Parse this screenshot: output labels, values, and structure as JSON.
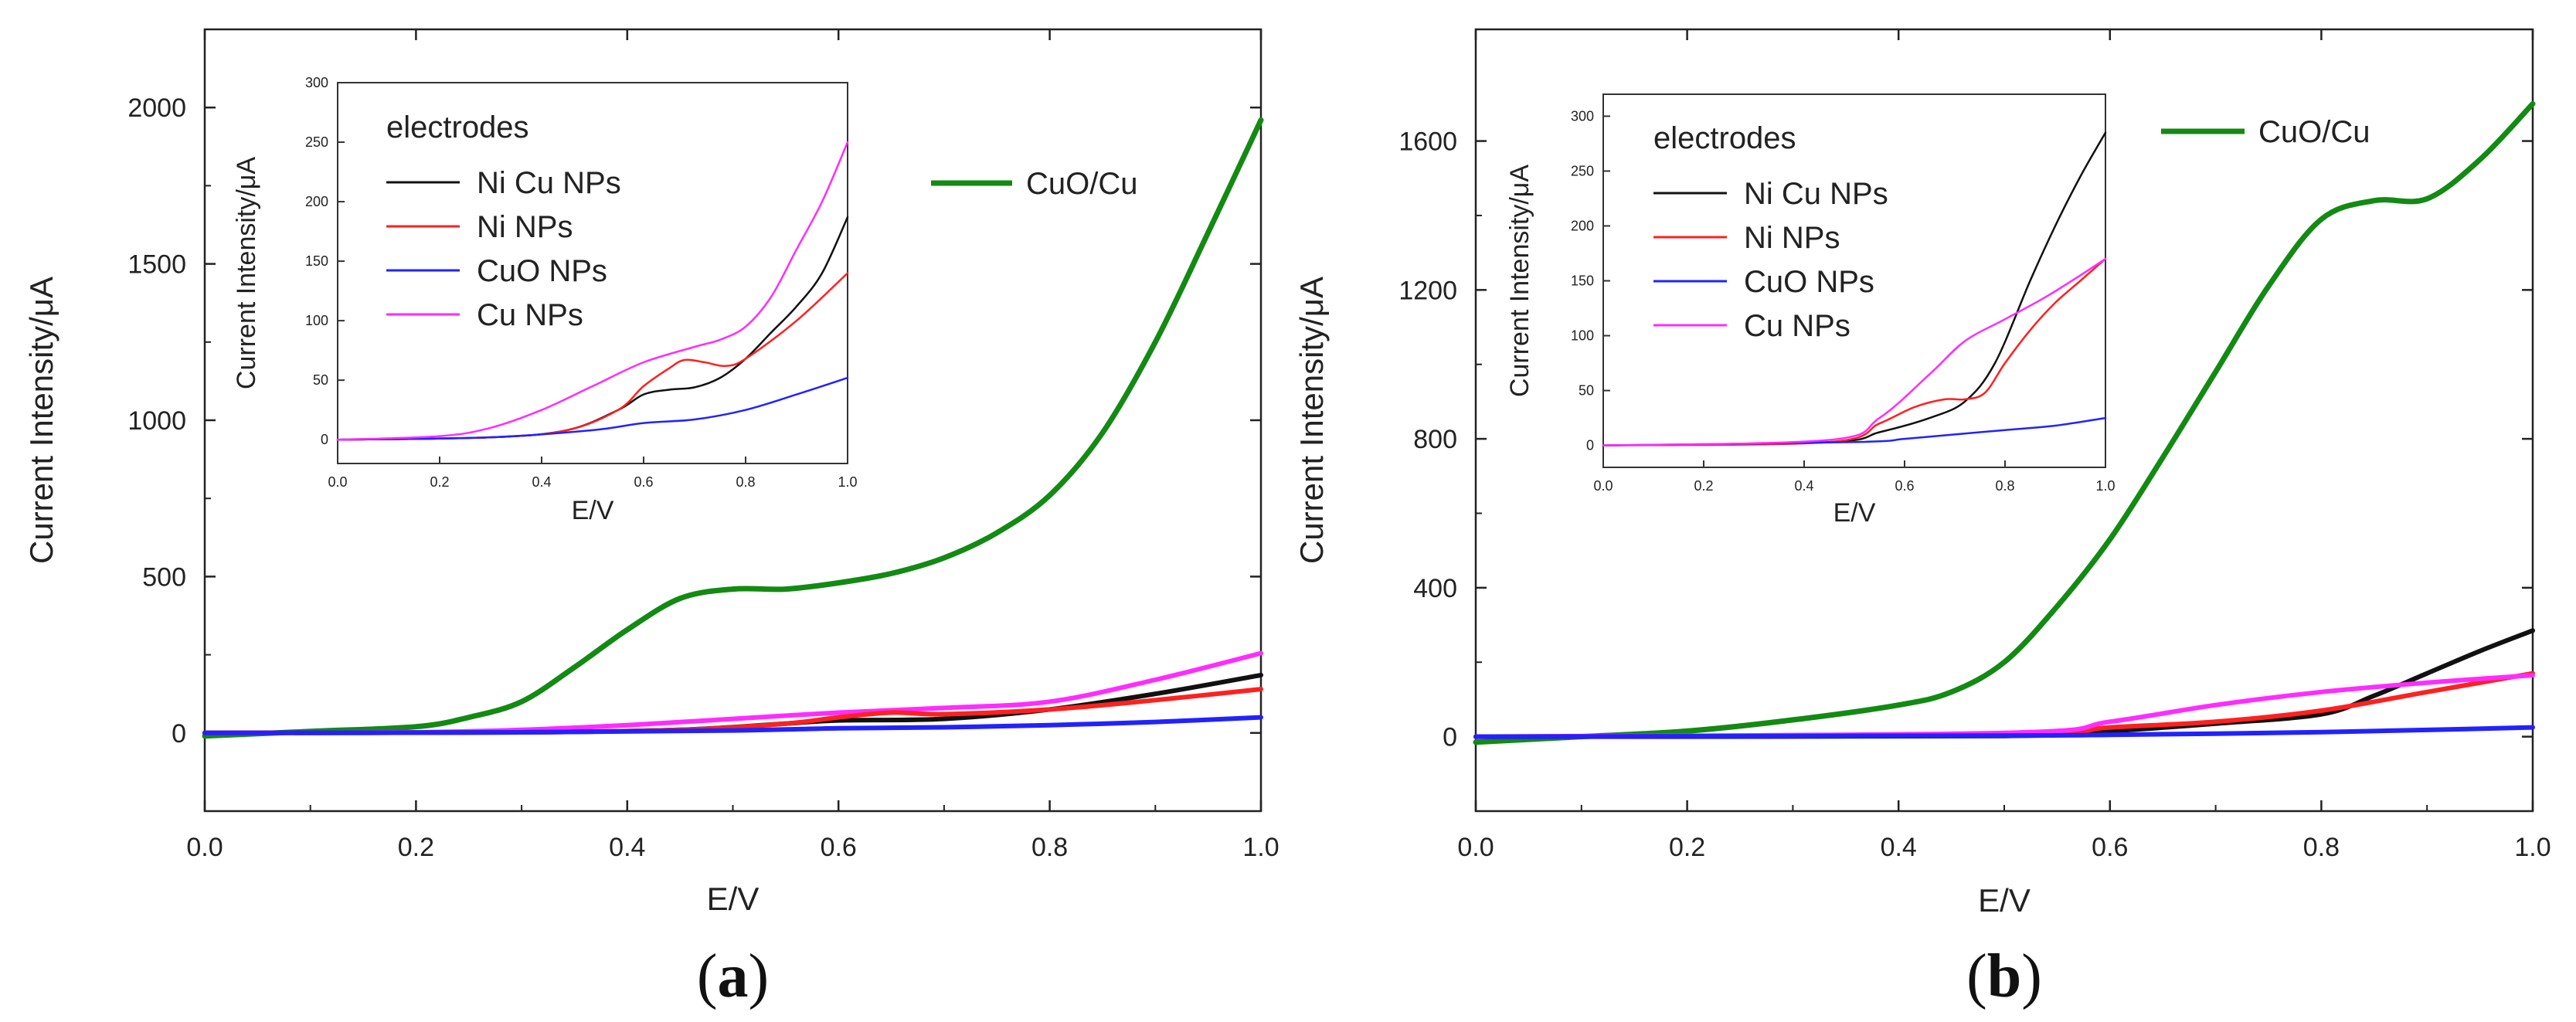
{
  "chart_data": [
    {
      "panel_label": "(a)",
      "type": "line",
      "xlabel": "E/V",
      "ylabel": "Current Intensity/μA",
      "xlim": [
        0.0,
        1.0
      ],
      "ylim": [
        -250,
        2250
      ],
      "xticks": [
        0.0,
        0.2,
        0.4,
        0.6,
        0.8,
        1.0
      ],
      "yticks": [
        0,
        500,
        1000,
        1500,
        2000
      ],
      "xtick_labels": [
        "0.0",
        "0.2",
        "0.4",
        "0.6",
        "0.8",
        "1.0"
      ],
      "ytick_labels": [
        "0",
        "500",
        "1000",
        "1500",
        "2000"
      ],
      "legend": "CuO/Cu",
      "series": [
        {
          "name": "CuO/Cu",
          "color": "#138a13",
          "x": [
            0,
            0.1,
            0.2,
            0.25,
            0.3,
            0.35,
            0.4,
            0.45,
            0.5,
            0.55,
            0.6,
            0.65,
            0.7,
            0.75,
            0.8,
            0.85,
            0.9,
            0.95,
            1.0
          ],
          "y": [
            -10,
            5,
            20,
            50,
            100,
            210,
            330,
            430,
            460,
            460,
            480,
            510,
            560,
            640,
            760,
            960,
            1250,
            1600,
            1960
          ]
        },
        {
          "name": "Cu NPs",
          "color": "#ff2cff",
          "x": [
            0,
            0.2,
            0.3,
            0.4,
            0.5,
            0.6,
            0.7,
            0.8,
            0.9,
            1.0
          ],
          "y": [
            0,
            2,
            10,
            25,
            45,
            65,
            80,
            100,
            170,
            255
          ]
        },
        {
          "name": "Ni Cu NPs",
          "color": "#111111",
          "x": [
            0,
            0.3,
            0.45,
            0.55,
            0.6,
            0.7,
            0.8,
            0.9,
            1.0
          ],
          "y": [
            0,
            2,
            10,
            30,
            40,
            45,
            75,
            125,
            185
          ]
        },
        {
          "name": "Ni NPs",
          "color": "#ff2020",
          "x": [
            0,
            0.3,
            0.45,
            0.55,
            0.6,
            0.65,
            0.7,
            0.8,
            0.9,
            1.0
          ],
          "y": [
            0,
            2,
            10,
            30,
            50,
            65,
            60,
            75,
            105,
            140
          ]
        },
        {
          "name": "CuO NPs",
          "color": "#2222ff",
          "x": [
            0,
            0.3,
            0.5,
            0.6,
            0.7,
            0.8,
            0.9,
            1.0
          ],
          "y": [
            0,
            2,
            8,
            15,
            18,
            25,
            35,
            50
          ]
        }
      ],
      "inset": {
        "xlabel": "E/V",
        "ylabel": "Current Intensity/μA",
        "xlim": [
          0.0,
          1.0
        ],
        "ylim": [
          -20,
          300
        ],
        "xticks": [
          0.0,
          0.2,
          0.4,
          0.6,
          0.8,
          1.0
        ],
        "yticks": [
          0,
          50,
          100,
          150,
          200,
          250,
          300
        ],
        "xtick_labels": [
          "0.0",
          "0.2",
          "0.4",
          "0.6",
          "0.8",
          "1.0"
        ],
        "ytick_labels": [
          "0",
          "50",
          "100",
          "150",
          "200",
          "250",
          "300"
        ],
        "legend_title": "electrodes",
        "legend_entries": [
          "Ni Cu NPs",
          "Ni NPs",
          "CuO NPs",
          "Cu NPs"
        ],
        "series": [
          {
            "name": "Ni Cu NPs",
            "color": "#111111",
            "x": [
              0,
              0.3,
              0.45,
              0.55,
              0.6,
              0.65,
              0.7,
              0.75,
              0.8,
              0.85,
              0.9,
              0.95,
              1.0
            ],
            "y": [
              0,
              2,
              8,
              25,
              38,
              42,
              44,
              52,
              68,
              90,
              112,
              140,
              187
            ]
          },
          {
            "name": "Ni NPs",
            "color": "#ff2020",
            "x": [
              0,
              0.3,
              0.45,
              0.55,
              0.6,
              0.65,
              0.68,
              0.72,
              0.76,
              0.8,
              0.9,
              1.0
            ],
            "y": [
              0,
              2,
              8,
              25,
              45,
              60,
              67,
              65,
              62,
              68,
              100,
              140
            ]
          },
          {
            "name": "CuO NPs",
            "color": "#2222ff",
            "x": [
              0,
              0.3,
              0.5,
              0.6,
              0.7,
              0.8,
              0.9,
              1.0
            ],
            "y": [
              0,
              2,
              8,
              14,
              17,
              25,
              38,
              52
            ]
          },
          {
            "name": "Cu NPs",
            "color": "#ff2cff",
            "x": [
              0,
              0.2,
              0.3,
              0.4,
              0.5,
              0.6,
              0.7,
              0.75,
              0.8,
              0.85,
              0.9,
              0.95,
              1.0
            ],
            "y": [
              0,
              3,
              10,
              25,
              45,
              65,
              78,
              84,
              95,
              120,
              160,
              200,
              250
            ]
          }
        ]
      }
    },
    {
      "panel_label": "(b)",
      "type": "line",
      "xlabel": "E/V",
      "ylabel": "Current Intensity/μA",
      "xlim": [
        0.0,
        1.0
      ],
      "ylim": [
        -200,
        1900
      ],
      "xticks": [
        0.0,
        0.2,
        0.4,
        0.6,
        0.8,
        1.0
      ],
      "yticks": [
        0,
        400,
        800,
        1200,
        1600
      ],
      "xtick_labels": [
        "0.0",
        "0.2",
        "0.4",
        "0.6",
        "0.8",
        "1.0"
      ],
      "ytick_labels": [
        "0",
        "400",
        "800",
        "1200",
        "1600"
      ],
      "legend": "CuO/Cu",
      "series": [
        {
          "name": "CuO/Cu",
          "color": "#138a13",
          "x": [
            0,
            0.1,
            0.2,
            0.3,
            0.4,
            0.45,
            0.5,
            0.55,
            0.6,
            0.65,
            0.7,
            0.75,
            0.8,
            0.85,
            0.9,
            0.95,
            1.0
          ],
          "y": [
            -15,
            0,
            15,
            45,
            85,
            120,
            200,
            350,
            530,
            750,
            980,
            1210,
            1390,
            1440,
            1445,
            1550,
            1700
          ]
        },
        {
          "name": "Ni Cu NPs",
          "color": "#111111",
          "x": [
            0,
            0.5,
            0.6,
            0.7,
            0.8,
            0.85,
            0.9,
            0.95,
            1.0
          ],
          "y": [
            0,
            2,
            15,
            35,
            60,
            110,
            170,
            230,
            285
          ]
        },
        {
          "name": "Ni NPs",
          "color": "#ff2020",
          "x": [
            0,
            0.5,
            0.6,
            0.7,
            0.8,
            0.9,
            1.0
          ],
          "y": [
            0,
            5,
            25,
            40,
            70,
            120,
            170
          ]
        },
        {
          "name": "Cu NPs",
          "color": "#ff2cff",
          "x": [
            0,
            0.5,
            0.6,
            0.7,
            0.8,
            0.9,
            1.0
          ],
          "y": [
            0,
            10,
            40,
            85,
            120,
            145,
            165
          ]
        },
        {
          "name": "CuO NPs",
          "color": "#2222ff",
          "x": [
            0,
            0.5,
            0.6,
            0.7,
            0.8,
            0.9,
            1.0
          ],
          "y": [
            0,
            3,
            5,
            8,
            12,
            18,
            25
          ]
        }
      ],
      "inset": {
        "xlabel": "E/V",
        "ylabel": "Current Intensity/μA",
        "xlim": [
          0.0,
          1.0
        ],
        "ylim": [
          -20,
          320
        ],
        "xticks": [
          0.0,
          0.2,
          0.4,
          0.6,
          0.8,
          1.0
        ],
        "yticks": [
          0,
          50,
          100,
          150,
          200,
          250,
          300
        ],
        "xtick_labels": [
          "0.0",
          "0.2",
          "0.4",
          "0.6",
          "0.8",
          "1.0"
        ],
        "ytick_labels": [
          "0",
          "50",
          "100",
          "150",
          "200",
          "250",
          "300"
        ],
        "legend_title": "electrodes",
        "legend_entries": [
          "Ni Cu NPs",
          "Ni NPs",
          "CuO NPs",
          "Cu NPs"
        ],
        "series": [
          {
            "name": "Ni Cu NPs",
            "color": "#111111",
            "x": [
              0,
              0.45,
              0.55,
              0.65,
              0.72,
              0.78,
              0.85,
              0.9,
              0.95,
              1.0
            ],
            "y": [
              0,
              3,
              12,
              25,
              40,
              75,
              150,
              200,
              245,
              285
            ]
          },
          {
            "name": "Ni NPs",
            "color": "#ff2020",
            "x": [
              0,
              0.45,
              0.55,
              0.62,
              0.68,
              0.72,
              0.76,
              0.8,
              0.85,
              0.9,
              0.95,
              1.0
            ],
            "y": [
              0,
              3,
              20,
              35,
              42,
              42,
              48,
              75,
              105,
              130,
              150,
              170
            ]
          },
          {
            "name": "CuO NPs",
            "color": "#2222ff",
            "x": [
              0,
              0.5,
              0.6,
              0.7,
              0.8,
              0.9,
              1.0
            ],
            "y": [
              0,
              3,
              6,
              10,
              14,
              18,
              25
            ]
          },
          {
            "name": "Cu NPs",
            "color": "#ff2cff",
            "x": [
              0,
              0.45,
              0.55,
              0.65,
              0.72,
              0.8,
              0.88,
              0.95,
              1.0
            ],
            "y": [
              0,
              5,
              25,
              65,
              95,
              115,
              135,
              155,
              170
            ]
          }
        ]
      }
    }
  ]
}
